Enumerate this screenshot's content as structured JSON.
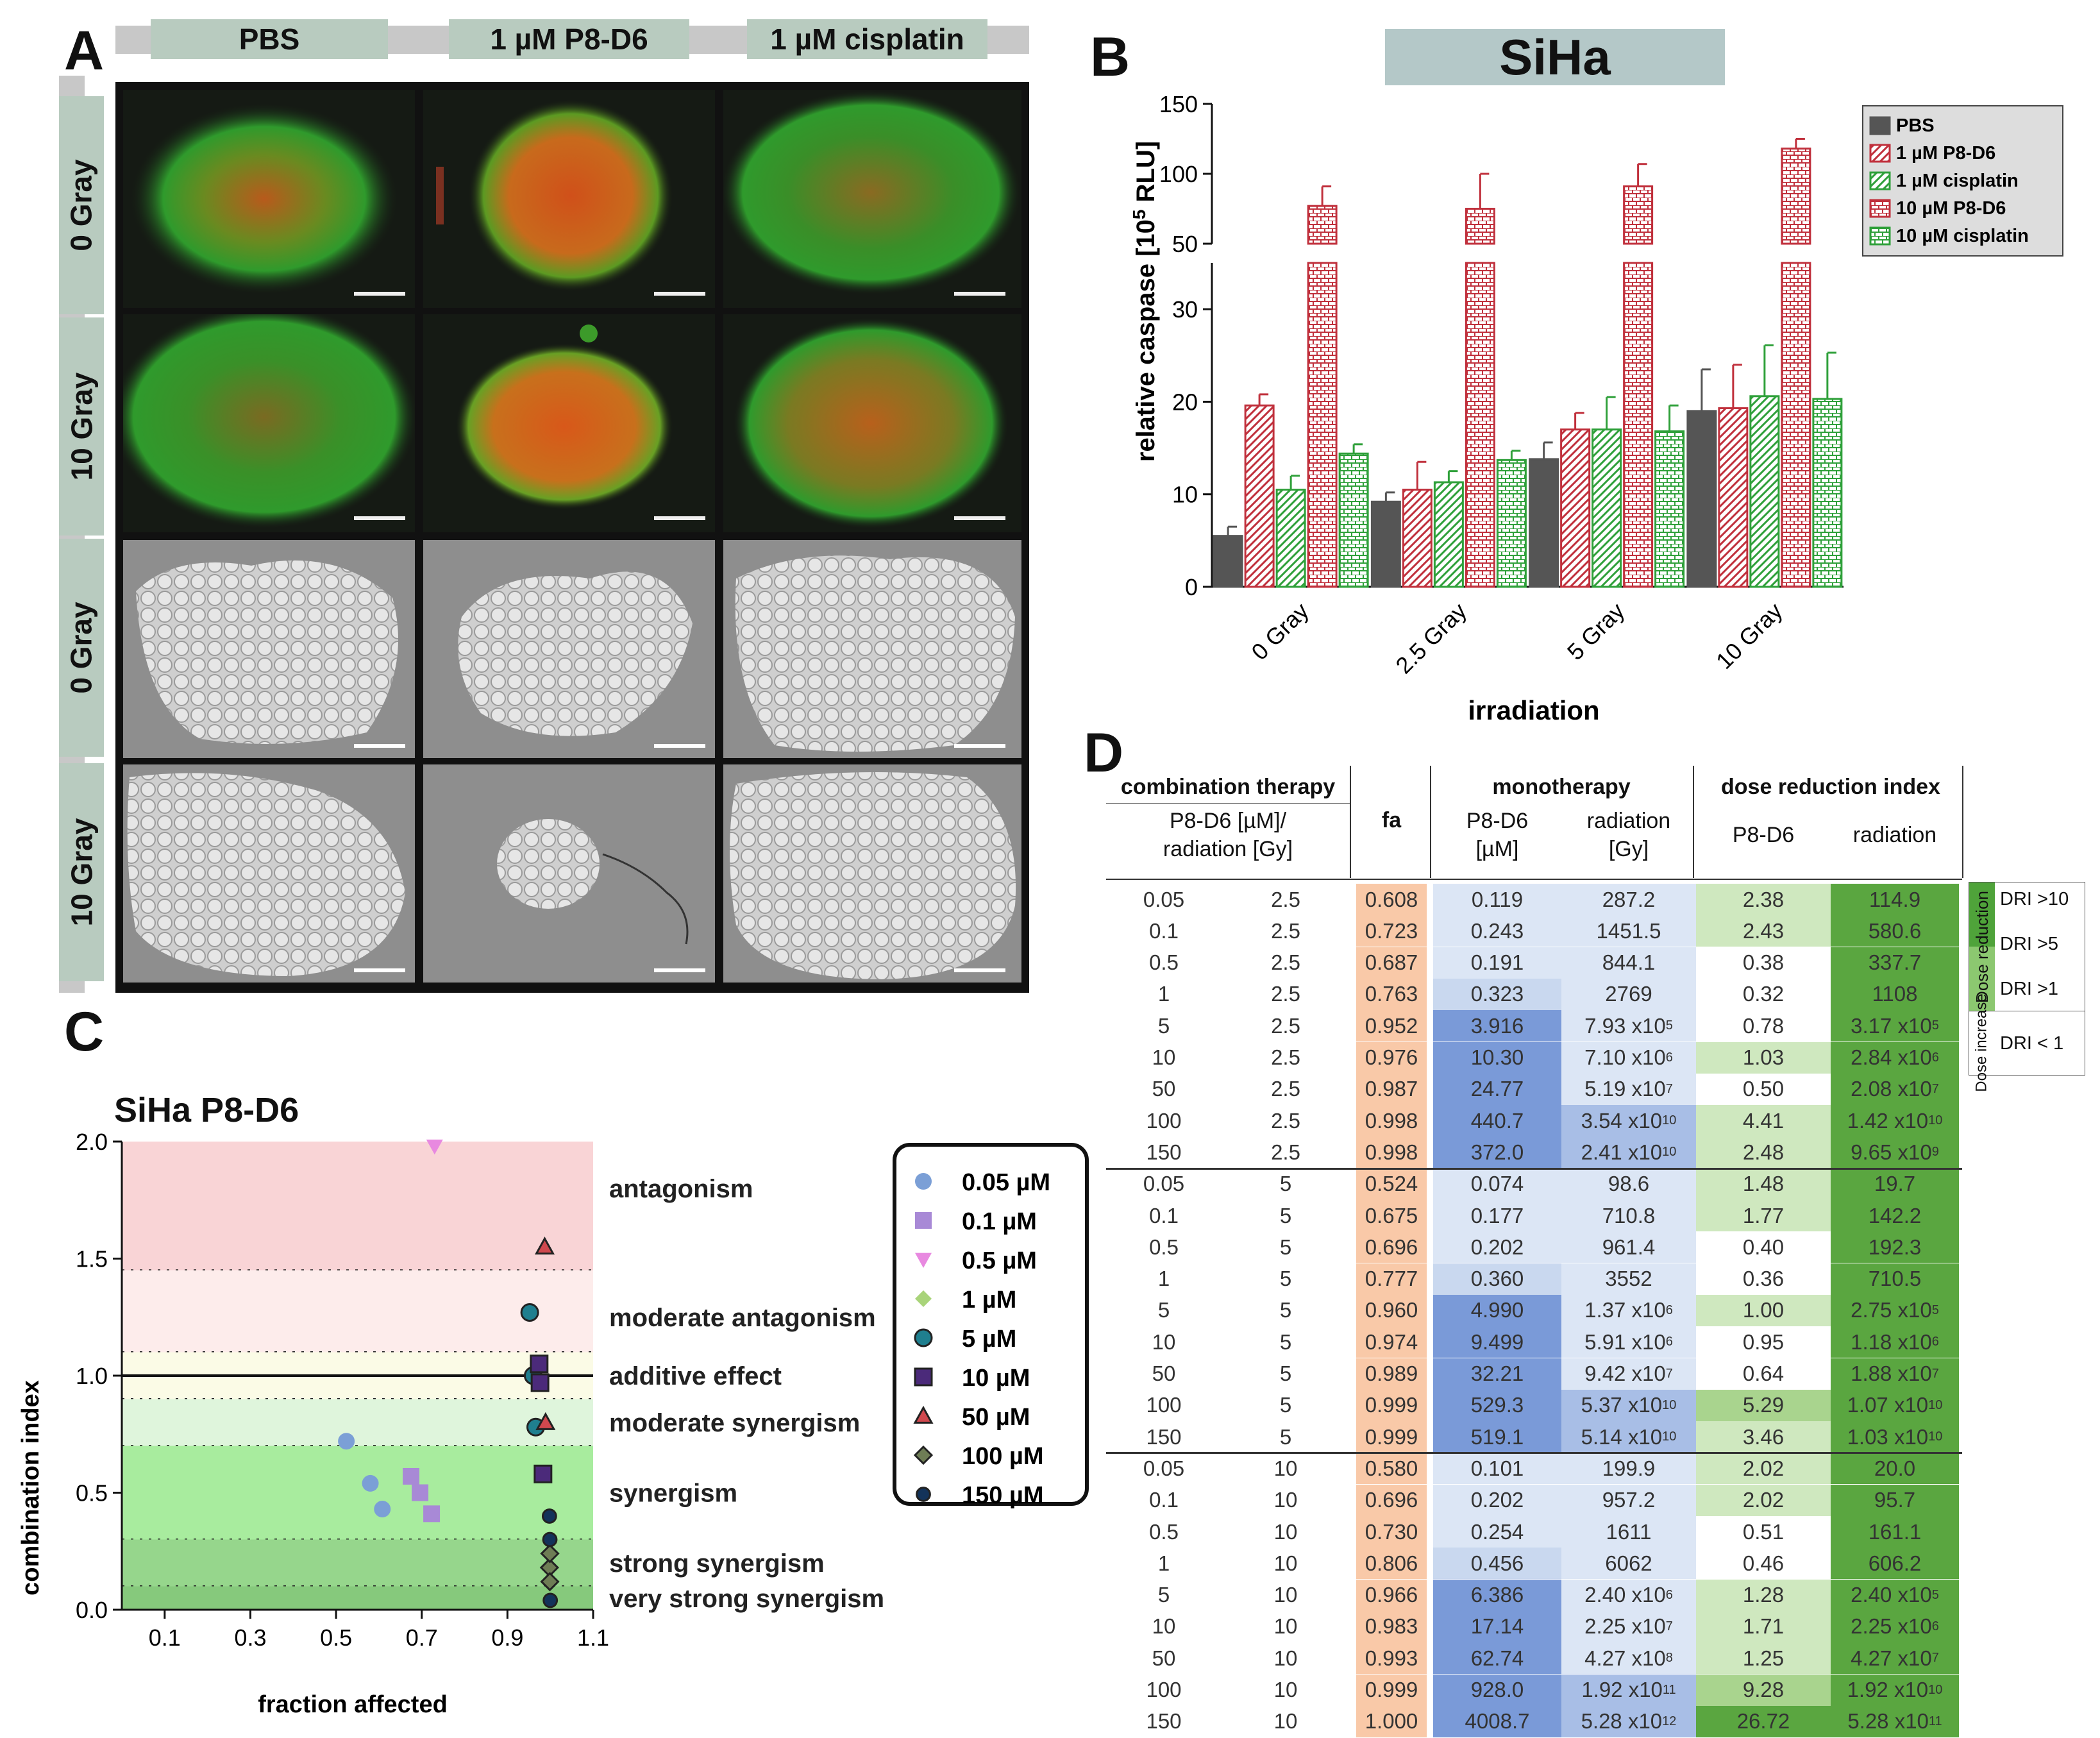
{
  "panel_labels": {
    "a": "A",
    "b": "B",
    "c": "C",
    "d": "D"
  },
  "panelA": {
    "columns": [
      "PBS",
      "1 µM P8-D6",
      "1 µM cisplatin"
    ],
    "rows": [
      "0 Gray",
      "10 Gray",
      "0 Gray",
      "10 Gray"
    ]
  },
  "panelB": {
    "banner": "SiHa",
    "chart_data": {
      "type": "bar",
      "title": "SiHa",
      "xlabel": "irradiation",
      "ylabel": "relative caspase [10^5 RLU]",
      "ylabel_parts": {
        "a": "relative caspase [10",
        "b": "5",
        "c": " RLU]"
      },
      "categories": [
        "0 Gray",
        "2.5 Gray",
        "5 Gray",
        "10 Gray"
      ],
      "axis_lower": {
        "range": [
          0,
          35
        ],
        "ticks": [
          "0",
          "10",
          "20",
          "30"
        ]
      },
      "axis_upper": {
        "range": [
          50,
          150
        ],
        "ticks": [
          "50",
          "100",
          "150"
        ]
      },
      "series": [
        {
          "name": "PBS",
          "color": "#555555",
          "values": [
            5.5,
            9.2,
            13.8,
            19.0
          ],
          "errors": [
            1.0,
            1.0,
            1.8,
            4.5
          ]
        },
        {
          "name": "1 µM P8-D6",
          "color": "#c0303c",
          "values": [
            19.6,
            10.5,
            17.0,
            19.3
          ],
          "errors": [
            1.2,
            3.0,
            1.8,
            4.7
          ]
        },
        {
          "name": "1 µM cisplatin",
          "color": "#2fa03a",
          "values": [
            10.5,
            11.3,
            17.0,
            20.6
          ],
          "errors": [
            1.5,
            1.2,
            3.5,
            5.5
          ]
        },
        {
          "name": "10 µM P8-D6",
          "color": "#c0303c",
          "values": [
            77,
            75,
            91,
            118
          ],
          "errors": [
            14,
            25,
            16,
            7
          ]
        },
        {
          "name": "10 µM cisplatin",
          "color": "#2fa03a",
          "values": [
            14.4,
            13.7,
            16.8,
            20.3
          ],
          "errors": [
            1.0,
            1.0,
            2.8,
            5.0
          ]
        }
      ]
    }
  },
  "panelC": {
    "title": "SiHa P8-D6",
    "chart_data": {
      "type": "scatter",
      "title": "SiHa P8-D6",
      "xlabel": "fraction affected",
      "ylabel": "combination index",
      "xlim": [
        0.0,
        1.1
      ],
      "ylim": [
        0.0,
        2.0
      ],
      "xticks": [
        "0.1",
        "0.3",
        "0.5",
        "0.7",
        "0.9",
        "1.1"
      ],
      "yticks": [
        "0.0",
        "0.5",
        "1.0",
        "1.5",
        "2.0"
      ],
      "zones": [
        {
          "label": "antagonism",
          "from": 1.45,
          "to": 2.0,
          "color": "#f9d4d6"
        },
        {
          "label": "moderate antagonism",
          "from": 1.1,
          "to": 1.45,
          "color": "#fdeceb"
        },
        {
          "label": "additive effect",
          "from": 0.9,
          "to": 1.1,
          "color": "#fbfbe6"
        },
        {
          "label": "moderate synergism",
          "from": 0.7,
          "to": 0.9,
          "color": "#dff5dc"
        },
        {
          "label": "synergism",
          "from": 0.3,
          "to": 0.7,
          "color": "#a8ec9e"
        },
        {
          "label": "strong synergism",
          "from": 0.1,
          "to": 0.3,
          "color": "#96d68c"
        },
        {
          "label": "very strong synergism",
          "from": 0.0,
          "to": 0.1,
          "color": "#86c97c"
        }
      ],
      "series": [
        {
          "name": "0.05 µM",
          "marker": "circle",
          "color": "#7b9fd6",
          "points": [
            [
              0.524,
              0.72
            ],
            [
              0.58,
              0.54
            ],
            [
              0.608,
              0.43
            ]
          ]
        },
        {
          "name": "0.1 µM",
          "marker": "square",
          "color": "#a889d6",
          "points": [
            [
              0.675,
              0.57
            ],
            [
              0.696,
              0.5
            ],
            [
              0.723,
              0.41
            ]
          ]
        },
        {
          "name": "0.5 µM",
          "marker": "triangle-down",
          "color": "#e889e0",
          "points": [
            [
              0.73,
              1.98
            ]
          ]
        },
        {
          "name": "1 µM",
          "marker": "diamond",
          "color": "#a9d47a",
          "points": []
        },
        {
          "name": "5 µM",
          "marker": "circle",
          "color": "#1f7f8f",
          "points": [
            [
              0.952,
              1.27
            ],
            [
              0.96,
              1.0
            ],
            [
              0.966,
              0.78
            ]
          ]
        },
        {
          "name": "10 µM",
          "marker": "square",
          "color": "#4b2a7a",
          "points": [
            [
              0.974,
              1.05
            ],
            [
              0.976,
              0.97
            ],
            [
              0.983,
              0.58
            ]
          ]
        },
        {
          "name": "50 µM",
          "marker": "triangle",
          "color": "#d0484e",
          "points": [
            [
              0.987,
              1.55
            ],
            [
              0.989,
              0.8
            ]
          ]
        },
        {
          "name": "100 µM",
          "marker": "diamond",
          "color": "#6e7d55",
          "points": [
            [
              0.998,
              0.18
            ],
            [
              0.999,
              0.24
            ],
            [
              0.999,
              0.12
            ]
          ]
        },
        {
          "name": "150 µM",
          "marker": "star",
          "color": "#13335a",
          "points": [
            [
              0.998,
              0.4
            ],
            [
              0.999,
              0.3
            ],
            [
              1.0,
              0.04
            ]
          ]
        }
      ]
    }
  },
  "panelD": {
    "headers": {
      "combination": "combination therapy",
      "combo_sub_a": "P8-D6 [µM]/",
      "combo_sub_b": "radiation [Gy]",
      "fa": "fa",
      "monotherapy": "monotherapy",
      "mono_p8_a": "P8-D6",
      "mono_p8_b": "[µM]",
      "mono_rad_a": "radiation",
      "mono_rad_b": "[Gy]",
      "dri": "dose reduction index",
      "dri_p8": "P8-D6",
      "dri_rad": "radiation"
    },
    "legend": {
      "reduction": "Dose reduction",
      "increase": "Dose increase",
      "dri10": "DRI >10",
      "dri5": "DRI >5",
      "dri1": "DRI >1",
      "dri_lt1": "DRI < 1"
    },
    "rows": [
      {
        "p8": "0.05",
        "rad": "2.5",
        "fa": "0.608",
        "mp": "0.119",
        "mr": "287.2",
        "dp": "2.38",
        "dr": "114.9"
      },
      {
        "p8": "0.1",
        "rad": "2.5",
        "fa": "0.723",
        "mp": "0.243",
        "mr": "1451.5",
        "dp": "2.43",
        "dr": "580.6"
      },
      {
        "p8": "0.5",
        "rad": "2.5",
        "fa": "0.687",
        "mp": "0.191",
        "mr": "844.1",
        "dp": "0.38",
        "dr": "337.7"
      },
      {
        "p8": "1",
        "rad": "2.5",
        "fa": "0.763",
        "mp": "0.323",
        "mr": "2769",
        "dp": "0.32",
        "dr": "1108"
      },
      {
        "p8": "5",
        "rad": "2.5",
        "fa": "0.952",
        "mp": "3.916",
        "mr": "7.93 x10",
        "mre": "5",
        "dp": "0.78",
        "dr": "3.17 x10",
        "dre": "5"
      },
      {
        "p8": "10",
        "rad": "2.5",
        "fa": "0.976",
        "mp": "10.30",
        "mr": "7.10 x10",
        "mre": "6",
        "dp": "1.03",
        "dr": "2.84 x10",
        "dre": "6"
      },
      {
        "p8": "50",
        "rad": "2.5",
        "fa": "0.987",
        "mp": "24.77",
        "mr": "5.19 x10",
        "mre": "7",
        "dp": "0.50",
        "dr": "2.08 x10",
        "dre": "7"
      },
      {
        "p8": "100",
        "rad": "2.5",
        "fa": "0.998",
        "mp": "440.7",
        "mr": "3.54 x10",
        "mre": "10",
        "dp": "4.41",
        "dr": "1.42 x10",
        "dre": "10"
      },
      {
        "p8": "150",
        "rad": "2.5",
        "fa": "0.998",
        "mp": "372.0",
        "mr": "2.41 x10",
        "mre": "10",
        "dp": "2.48",
        "dr": "9.65 x10",
        "dre": "9"
      },
      {
        "p8": "0.05",
        "rad": "5",
        "fa": "0.524",
        "mp": "0.074",
        "mr": "98.6",
        "dp": "1.48",
        "dr": "19.7"
      },
      {
        "p8": "0.1",
        "rad": "5",
        "fa": "0.675",
        "mp": "0.177",
        "mr": "710.8",
        "dp": "1.77",
        "dr": "142.2"
      },
      {
        "p8": "0.5",
        "rad": "5",
        "fa": "0.696",
        "mp": "0.202",
        "mr": "961.4",
        "dp": "0.40",
        "dr": "192.3"
      },
      {
        "p8": "1",
        "rad": "5",
        "fa": "0.777",
        "mp": "0.360",
        "mr": "3552",
        "dp": "0.36",
        "dr": "710.5"
      },
      {
        "p8": "5",
        "rad": "5",
        "fa": "0.960",
        "mp": "4.990",
        "mr": "1.37 x10",
        "mre": "6",
        "dp": "1.00",
        "dr": "2.75 x10",
        "dre": "5"
      },
      {
        "p8": "10",
        "rad": "5",
        "fa": "0.974",
        "mp": "9.499",
        "mr": "5.91 x10",
        "mre": "6",
        "dp": "0.95",
        "dr": "1.18 x10",
        "dre": "6"
      },
      {
        "p8": "50",
        "rad": "5",
        "fa": "0.989",
        "mp": "32.21",
        "mr": "9.42 x10",
        "mre": "7",
        "dp": "0.64",
        "dr": "1.88 x10",
        "dre": "7"
      },
      {
        "p8": "100",
        "rad": "5",
        "fa": "0.999",
        "mp": "529.3",
        "mr": "5.37 x10",
        "mre": "10",
        "dp": "5.29",
        "dr": "1.07 x10",
        "dre": "10"
      },
      {
        "p8": "150",
        "rad": "5",
        "fa": "0.999",
        "mp": "519.1",
        "mr": "5.14 x10",
        "mre": "10",
        "dp": "3.46",
        "dr": "1.03 x10",
        "dre": "10"
      },
      {
        "p8": "0.05",
        "rad": "10",
        "fa": "0.580",
        "mp": "0.101",
        "mr": "199.9",
        "dp": "2.02",
        "dr": "20.0"
      },
      {
        "p8": "0.1",
        "rad": "10",
        "fa": "0.696",
        "mp": "0.202",
        "mr": "957.2",
        "dp": "2.02",
        "dr": "95.7"
      },
      {
        "p8": "0.5",
        "rad": "10",
        "fa": "0.730",
        "mp": "0.254",
        "mr": "1611",
        "dp": "0.51",
        "dr": "161.1"
      },
      {
        "p8": "1",
        "rad": "10",
        "fa": "0.806",
        "mp": "0.456",
        "mr": "6062",
        "dp": "0.46",
        "dr": "606.2"
      },
      {
        "p8": "5",
        "rad": "10",
        "fa": "0.966",
        "mp": "6.386",
        "mr": "2.40 x10",
        "mre": "6",
        "dp": "1.28",
        "dr": "2.40 x10",
        "dre": "5"
      },
      {
        "p8": "10",
        "rad": "10",
        "fa": "0.983",
        "mp": "17.14",
        "mr": "2.25 x10",
        "mre": "7",
        "dp": "1.71",
        "dr": "2.25 x10",
        "dre": "6"
      },
      {
        "p8": "50",
        "rad": "10",
        "fa": "0.993",
        "mp": "62.74",
        "mr": "4.27 x10",
        "mre": "8",
        "dp": "1.25",
        "dr": "4.27 x10",
        "dre": "7"
      },
      {
        "p8": "100",
        "rad": "10",
        "fa": "0.999",
        "mp": "928.0",
        "mr": "1.92 x10",
        "mre": "11",
        "dp": "9.28",
        "dr": "1.92 x10",
        "dre": "10"
      },
      {
        "p8": "150",
        "rad": "10",
        "fa": "1.000",
        "mp": "4008.7",
        "mr": "5.28 x10",
        "mre": "12",
        "dp": "26.72",
        "dr": "5.28 x10",
        "dre": "11"
      }
    ]
  }
}
